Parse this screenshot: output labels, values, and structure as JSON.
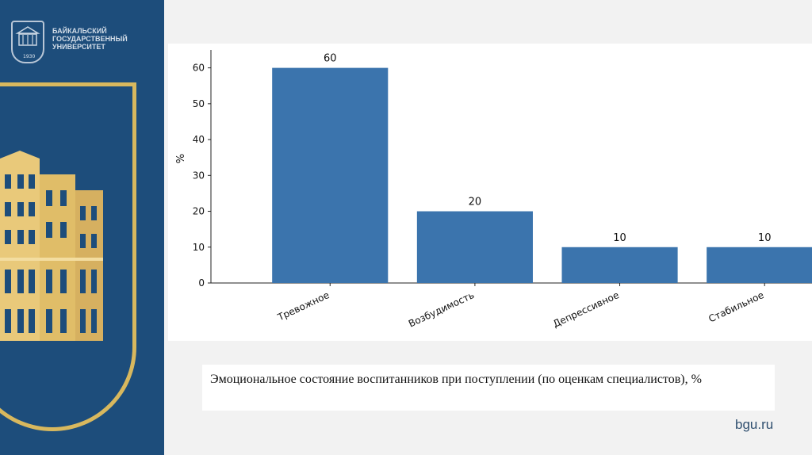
{
  "logo": {
    "lines": [
      "БАЙКАЛЬСКИЙ",
      "ГОСУДАРСТВЕННЫЙ",
      "УНИВЕРСИТЕТ"
    ],
    "year": "1930"
  },
  "caption": "Эмоциональное состояние воспитанников при поступлении (по оценкам специалистов), %",
  "site": "bgu.ru",
  "colors": {
    "bar": "#3b74ad",
    "sidebar": "#1d4d7b",
    "gold": "#d8b85e"
  },
  "chart_data": {
    "type": "bar",
    "categories": [
      "Тревожное",
      "Возбудимость",
      "Депрессивное",
      "Стабильное"
    ],
    "values": [
      60,
      20,
      10,
      10
    ],
    "data_labels": [
      "60",
      "20",
      "10",
      "10"
    ],
    "ylabel": "%",
    "xlabel": "",
    "ylim": [
      0,
      65
    ],
    "yticks": [
      0,
      10,
      20,
      30,
      40,
      50,
      60
    ],
    "grid": false,
    "legend": "none"
  }
}
